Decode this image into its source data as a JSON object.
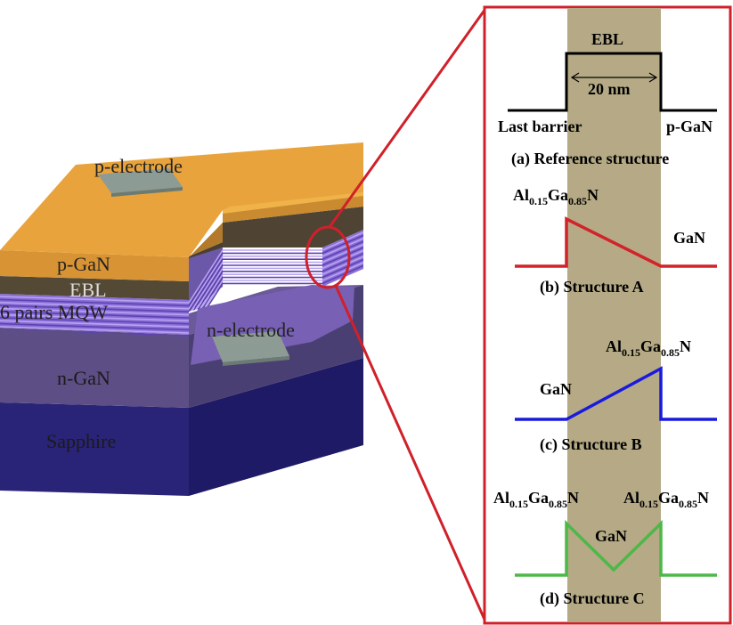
{
  "device": {
    "layers": {
      "p_gan": "p-GaN",
      "ebl": "EBL",
      "mqw": "6 pairs MQW",
      "n_gan": "n-GaN",
      "sapphire": "Sapphire"
    },
    "p_electrode": "p-electrode",
    "n_electrode": "n-electrode",
    "colors": {
      "p_gan": "#e8a33c",
      "ebl": "#544934",
      "mqw": "#8b6fd8",
      "n_gan": "#5d4f85",
      "sapphire": "#2a2478",
      "electrode": "#8d9b95",
      "callout": "#d0202a"
    }
  },
  "profiles": {
    "band_color": "#b5aa85",
    "a": {
      "top_label": "EBL",
      "width_label": "20 nm",
      "left_label": "Last barrier",
      "right_label": "p-GaN",
      "caption": "(a) Reference structure",
      "color": "#000000"
    },
    "b": {
      "alloy": {
        "el1": "Al",
        "s1": "0.15",
        "el2": "Ga",
        "s2": "0.85",
        "el3": "N"
      },
      "gan_label": "GaN",
      "caption": "(b) Structure A",
      "color": "#d2232a"
    },
    "c": {
      "alloy": {
        "el1": "Al",
        "s1": "0.15",
        "el2": "Ga",
        "s2": "0.85",
        "el3": "N"
      },
      "gan_label": "GaN",
      "caption": "(c) Structure B",
      "color": "#1a1adc"
    },
    "d": {
      "alloy_left": {
        "el1": "Al",
        "s1": "0.15",
        "el2": "Ga",
        "s2": "0.85",
        "el3": "N"
      },
      "alloy_right": {
        "el1": "Al",
        "s1": "0.15",
        "el2": "Ga",
        "s2": "0.85",
        "el3": "N"
      },
      "gan_label": "GaN",
      "caption": "(d) Structure C",
      "color": "#4db848"
    }
  }
}
